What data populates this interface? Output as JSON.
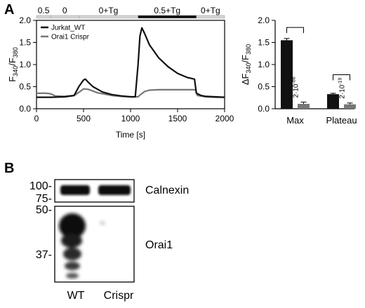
{
  "panel_a": {
    "label": "A",
    "protocol": [
      {
        "label": "0.5",
        "t0": 0,
        "t1": 150,
        "bar": "light"
      },
      {
        "label": "0",
        "t0": 150,
        "t1": 450,
        "bar": "light"
      },
      {
        "label": "0+Tg",
        "t0": 450,
        "t1": 1080,
        "bar": "light"
      },
      {
        "label": "0.5+Tg",
        "t0": 1080,
        "t1": 1700,
        "bar": "dark"
      },
      {
        "label": "0+Tg",
        "t0": 1700,
        "t1": 2000,
        "bar": "light"
      }
    ]
  },
  "panel_b": {
    "label": "B",
    "mw_markers": [
      {
        "label": "100-",
        "kda": 100
      },
      {
        "label": "75-",
        "kda": 75
      },
      {
        "label": "50-",
        "kda": 50
      },
      {
        "label": "37-",
        "kda": 37
      }
    ],
    "blots": [
      {
        "name": "Calnexin"
      },
      {
        "name": "Orai1"
      }
    ],
    "lanes": [
      "WT",
      "Crispr"
    ]
  },
  "chart_data": [
    {
      "type": "line",
      "title": "",
      "xlabel": "Time [s]",
      "ylabel": "F340/F380",
      "ylabel_main": "F",
      "ylabel_sub1": "340",
      "ylabel_sep": "/F",
      "ylabel_sub2": "380",
      "xlim": [
        0,
        2000
      ],
      "ylim": [
        0,
        2.0
      ],
      "xticks": [
        "0",
        "500",
        "1000",
        "1500",
        "2000"
      ],
      "yticks": [
        "0.0",
        "0.5",
        "1.0",
        "1.5",
        "2.0"
      ],
      "legend": "top-left",
      "series": [
        {
          "name": "Jurkat_WT",
          "color": "#111111",
          "x": [
            0,
            150,
            300,
            400,
            450,
            500,
            520,
            550,
            600,
            700,
            800,
            900,
            1000,
            1050,
            1080,
            1100,
            1120,
            1150,
            1200,
            1300,
            1400,
            1500,
            1600,
            1680,
            1700,
            1750,
            1800,
            1900,
            2000
          ],
          "y": [
            0.26,
            0.26,
            0.27,
            0.3,
            0.5,
            0.65,
            0.67,
            0.6,
            0.5,
            0.38,
            0.32,
            0.29,
            0.27,
            0.27,
            1.0,
            1.65,
            1.83,
            1.7,
            1.45,
            1.15,
            0.95,
            0.8,
            0.71,
            0.67,
            0.35,
            0.3,
            0.28,
            0.27,
            0.26
          ]
        },
        {
          "name": "Orai1 Crispr",
          "color": "#777777",
          "x": [
            0,
            100,
            150,
            200,
            300,
            400,
            450,
            500,
            550,
            650,
            800,
            900,
            1000,
            1080,
            1100,
            1150,
            1200,
            1300,
            1400,
            1500,
            1600,
            1690,
            1710,
            1800,
            1900,
            2000
          ],
          "y": [
            0.35,
            0.35,
            0.34,
            0.29,
            0.28,
            0.3,
            0.37,
            0.45,
            0.44,
            0.36,
            0.3,
            0.28,
            0.27,
            0.27,
            0.31,
            0.39,
            0.42,
            0.43,
            0.43,
            0.43,
            0.43,
            0.43,
            0.3,
            0.27,
            0.26,
            0.26
          ]
        }
      ]
    },
    {
      "type": "bar",
      "title": "",
      "xlabel": "",
      "ylabel": "ΔF340/F380",
      "ylabel_main": "ΔF",
      "ylabel_sub1": "340",
      "ylabel_sep": "/F",
      "ylabel_sub2": "380",
      "ylim": [
        0,
        2.0
      ],
      "yticks": [
        "0.0",
        "0.5",
        "1.0",
        "1.5",
        "2.0"
      ],
      "categories": [
        "Max",
        "Plateau"
      ],
      "series": [
        {
          "color": "#111111",
          "values": [
            1.55,
            0.33
          ],
          "errors": [
            0.04,
            0.02
          ]
        },
        {
          "color": "#777777",
          "values": [
            0.11,
            0.1
          ],
          "errors": [
            0.04,
            0.03
          ]
        }
      ],
      "annotations": [
        {
          "category": "Max",
          "text": "2·10",
          "exponent": "-86"
        },
        {
          "category": "Plateau",
          "text": "2·10",
          "exponent": "-19"
        }
      ]
    }
  ]
}
